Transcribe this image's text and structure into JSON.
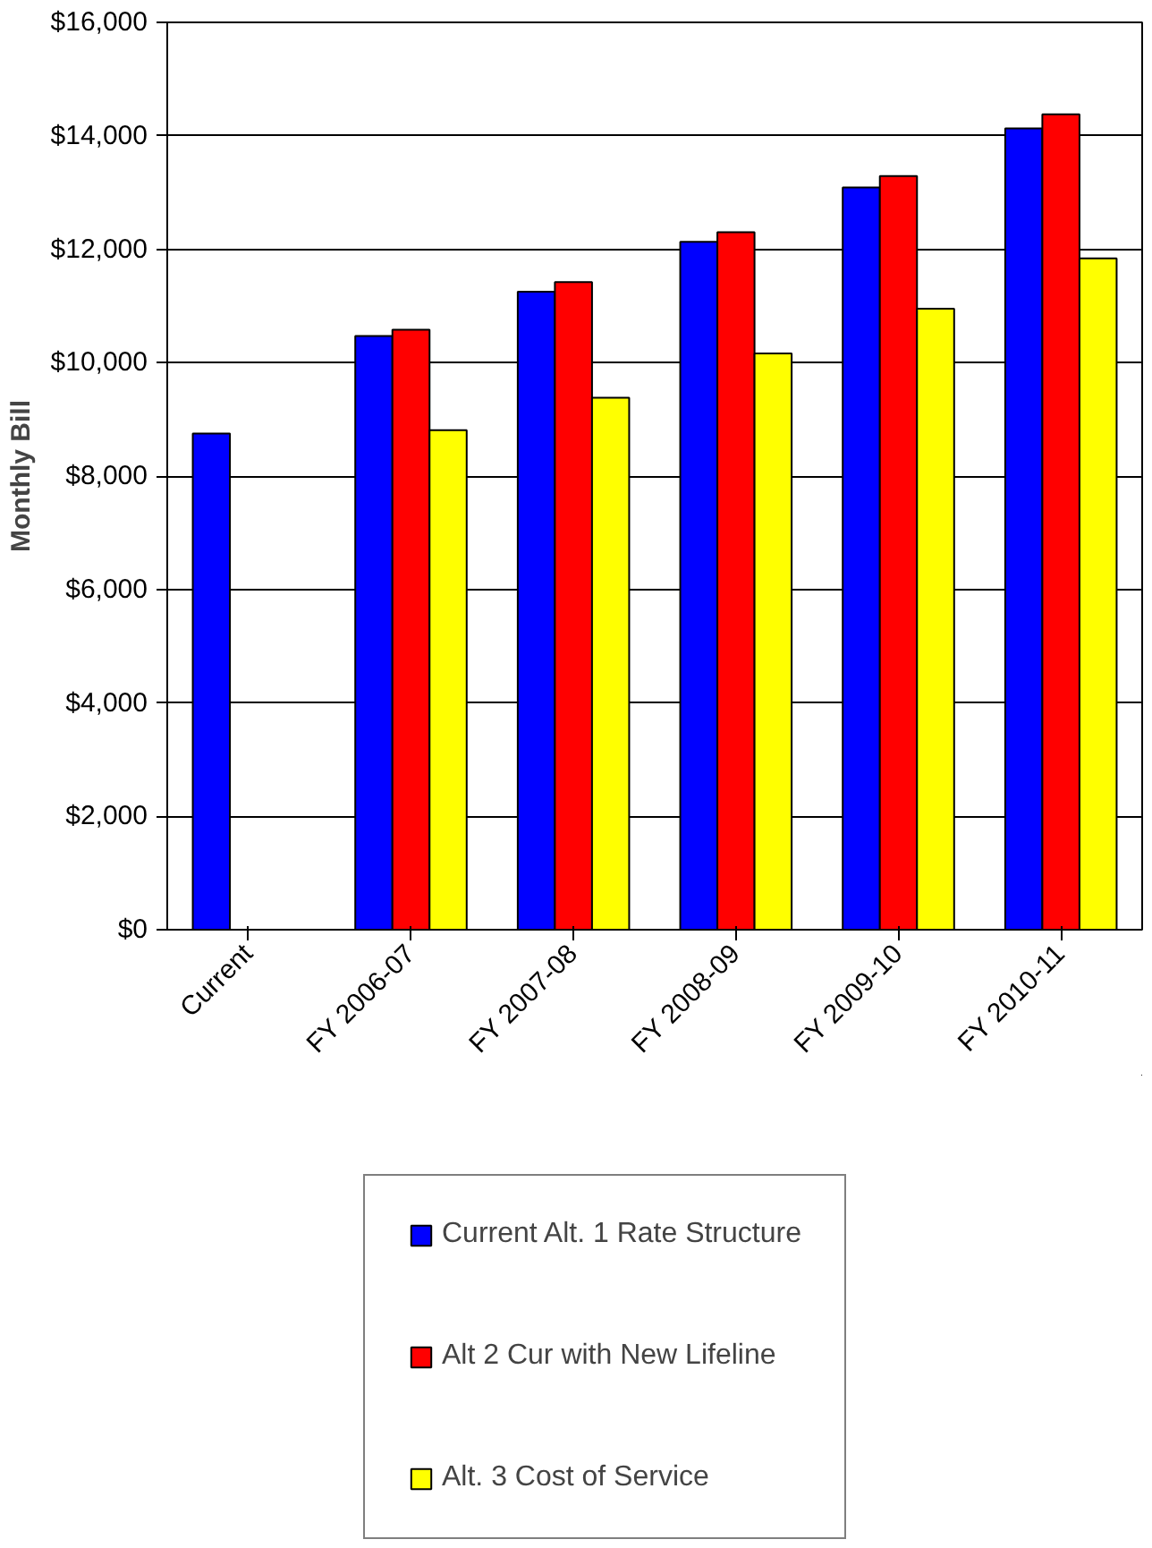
{
  "chart_data": {
    "type": "bar",
    "ylabel": "Monthly Bill",
    "categories": [
      "Current",
      "FY 2006-07",
      "FY 2007-08",
      "FY 2008-09",
      "FY 2009-10",
      "FY 2010-11"
    ],
    "series": [
      {
        "name": "Current Alt. 1 Rate Structure",
        "color": "#0000ff",
        "values": [
          8750,
          10470,
          11250,
          12130,
          13090,
          14130
        ]
      },
      {
        "name": "Alt 2 Cur with New Lifeline",
        "color": "#ff0000",
        "values": [
          null,
          10580,
          11420,
          12300,
          13290,
          14380
        ]
      },
      {
        "name": "Alt. 3 Cost of Service",
        "color": "#ffff00",
        "values": [
          null,
          8810,
          9380,
          10160,
          10950,
          11840
        ]
      }
    ],
    "ylim": [
      0,
      16000
    ],
    "yticks": [
      {
        "value": 0,
        "label": "$0"
      },
      {
        "value": 2000,
        "label": "$2,000"
      },
      {
        "value": 4000,
        "label": "$4,000"
      },
      {
        "value": 6000,
        "label": "$6,000"
      },
      {
        "value": 8000,
        "label": "$8,000"
      },
      {
        "value": 10000,
        "label": "$10,000"
      },
      {
        "value": 12000,
        "label": "$12,000"
      },
      {
        "value": 14000,
        "label": "$14,000"
      },
      {
        "value": 16000,
        "label": "$16,000"
      }
    ],
    "grid": "y",
    "legend": "bottom"
  }
}
